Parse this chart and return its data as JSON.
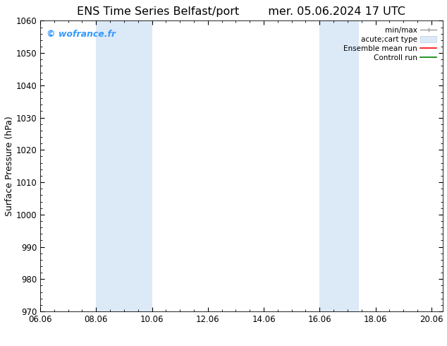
{
  "title_left": "ENS Time Series Belfast/port",
  "title_right": "mer. 05.06.2024 17 UTC",
  "ylabel": "Surface Pressure (hPa)",
  "ylim": [
    970,
    1060
  ],
  "yticks": [
    970,
    980,
    990,
    1000,
    1010,
    1020,
    1030,
    1040,
    1050,
    1060
  ],
  "xlim": [
    0,
    14.4
  ],
  "xtick_labels": [
    "06.06",
    "08.06",
    "10.06",
    "12.06",
    "14.06",
    "16.06",
    "18.06",
    "20.06"
  ],
  "xtick_positions": [
    0,
    2,
    4,
    6,
    8,
    10,
    12,
    14
  ],
  "background_color": "#ffffff",
  "plot_bg_color": "#ffffff",
  "shaded_regions": [
    {
      "xmin": 2.0,
      "xmax": 4.0,
      "color": "#dce9f7"
    },
    {
      "xmin": 10.0,
      "xmax": 11.4,
      "color": "#dce9f7"
    }
  ],
  "watermark_text": "© wofrance.fr",
  "watermark_color": "#3399ff",
  "title_fontsize": 11.5,
  "tick_fontsize": 8.5,
  "ylabel_fontsize": 9
}
